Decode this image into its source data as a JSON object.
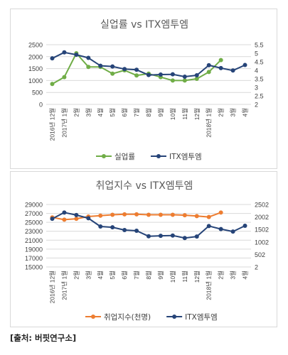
{
  "source": "[출처: 버핏연구소]",
  "chart_data": [
    {
      "type": "line",
      "title": "실업률 vs ITX엠투엠",
      "categories": [
        "2016년 12월",
        "2017년 1월",
        "2월",
        "3월",
        "4월",
        "5월",
        "6월",
        "7월",
        "8월",
        "9월",
        "10월",
        "11월",
        "12월",
        "2018년 1월",
        "2월",
        "3월",
        "4월"
      ],
      "y_left": {
        "min": 0,
        "max": 2500,
        "ticks": [
          "0",
          "500",
          "1000",
          "1500",
          "2000",
          "2500"
        ]
      },
      "y_right": {
        "min": 2,
        "max": 5.5,
        "ticks": [
          "2",
          "2.5",
          "3",
          "3.5",
          "4",
          "4.5",
          "5",
          "5.5"
        ]
      },
      "series": [
        {
          "name": "실업률",
          "axis": "right",
          "color": "#70ad47",
          "values": [
            3.2,
            3.6,
            5.0,
            4.2,
            4.2,
            3.8,
            4.0,
            3.7,
            3.8,
            3.6,
            3.4,
            3.4,
            3.5,
            3.9,
            4.6,
            null,
            null
          ]
        },
        {
          "name": "ITX엠투엠",
          "axis": "left",
          "color": "#264478",
          "values": [
            1930,
            2180,
            2080,
            1950,
            1620,
            1590,
            1480,
            1450,
            1230,
            1250,
            1260,
            1160,
            1220,
            1640,
            1520,
            1420,
            1650
          ]
        }
      ],
      "legend": "bottom"
    },
    {
      "type": "line",
      "title": "취업지수 vs ITX엠투엠",
      "categories": [
        "2016년 12월",
        "2017년 1월",
        "2월",
        "3월",
        "4월",
        "5월",
        "6월",
        "7월",
        "8월",
        "9월",
        "10월",
        "11월",
        "12월",
        "2018년 1월",
        "2월",
        "3월",
        "4월"
      ],
      "y_left": {
        "min": 15000,
        "max": 29000,
        "ticks": [
          "15000",
          "17000",
          "19000",
          "21000",
          "23000",
          "25000",
          "27000",
          "29000"
        ]
      },
      "y_right": {
        "min": 2,
        "max": 2502,
        "ticks": [
          "2",
          "502",
          "1002",
          "1502",
          "2002",
          "2502"
        ]
      },
      "series": [
        {
          "name": "취업지수(천명)",
          "axis": "left",
          "color": "#ed7d31",
          "values": [
            26100,
            25600,
            25800,
            26300,
            26500,
            26700,
            26800,
            26800,
            26700,
            26700,
            26700,
            26600,
            26400,
            26200,
            27200,
            null,
            null
          ]
        },
        {
          "name": "ITX엠투엠",
          "axis": "right",
          "color": "#264478",
          "values": [
            1930,
            2180,
            2080,
            1950,
            1620,
            1590,
            1480,
            1450,
            1230,
            1250,
            1260,
            1160,
            1220,
            1640,
            1520,
            1420,
            1650
          ]
        }
      ],
      "legend": "bottom"
    }
  ]
}
